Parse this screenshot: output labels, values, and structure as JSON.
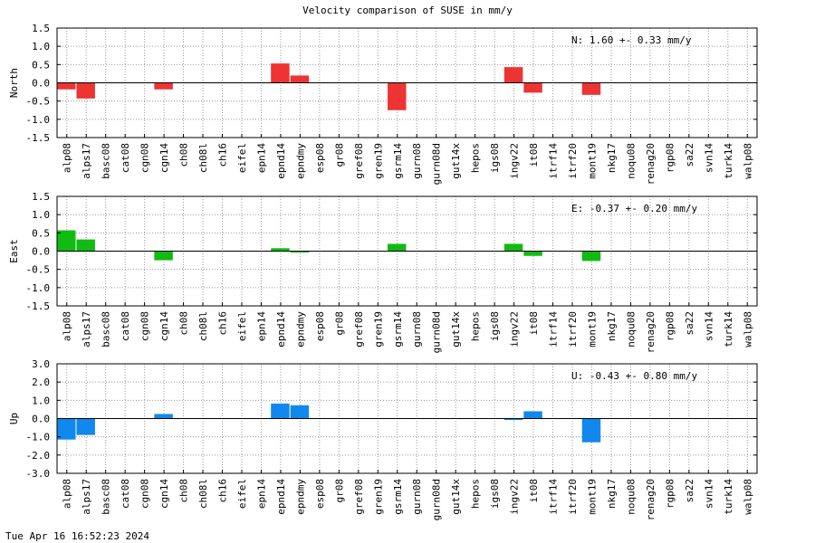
{
  "title": "Velocity comparison of SUSE in mm/y",
  "footer": "Tue Apr 16 16:52:23 2024",
  "chart_data": [
    {
      "type": "bar",
      "ylabel": "North",
      "ylim": [
        -1.5,
        1.5
      ],
      "yticks": [
        "1.5",
        "1.0",
        "0.5",
        "0.0",
        "-0.5",
        "-1.0",
        "-1.5"
      ],
      "ytick_values": [
        1.5,
        1.0,
        0.5,
        0.0,
        -0.5,
        -1.0,
        -1.5
      ],
      "grid": true,
      "color": "#ee3333",
      "annotation": "N:   1.60 +-  0.33 mm/y",
      "categories": [
        "alp08",
        "alps17",
        "basc08",
        "cat08",
        "cgn08",
        "cgn14",
        "ch08",
        "ch08l",
        "ch16",
        "eifel",
        "epn14",
        "epnd14",
        "epndmy",
        "esp08",
        "gr08",
        "gref08",
        "gren19",
        "gsrm14",
        "gurn08",
        "gurn08d",
        "gut14x",
        "hepos",
        "igs08",
        "ingv22",
        "it08",
        "itrf14",
        "itrf20",
        "mont19",
        "nkg17",
        "noqu08",
        "renag20",
        "rgp08",
        "sa22",
        "svn14",
        "turk14",
        "walp08"
      ],
      "values": [
        -0.18,
        -0.43,
        0,
        0,
        0,
        -0.18,
        0,
        0,
        0,
        0,
        0,
        0.53,
        0.2,
        0,
        0,
        0,
        0,
        -0.75,
        0,
        0,
        0,
        0,
        0,
        0.43,
        -0.27,
        0,
        0,
        -0.33,
        0,
        0,
        0,
        0,
        0,
        0,
        0,
        0
      ]
    },
    {
      "type": "bar",
      "ylabel": "East",
      "ylim": [
        -1.5,
        1.5
      ],
      "yticks": [
        "1.5",
        "1.0",
        "0.5",
        "0.0",
        "-0.5",
        "-1.0",
        "-1.5"
      ],
      "ytick_values": [
        1.5,
        1.0,
        0.5,
        0.0,
        -0.5,
        -1.0,
        -1.5
      ],
      "grid": true,
      "color": "#11bb11",
      "annotation": "E:  -0.37 +-  0.20 mm/y",
      "categories": [
        "alp08",
        "alps17",
        "basc08",
        "cat08",
        "cgn08",
        "cgn14",
        "ch08",
        "ch08l",
        "ch16",
        "eifel",
        "epn14",
        "epnd14",
        "epndmy",
        "esp08",
        "gr08",
        "gref08",
        "gren19",
        "gsrm14",
        "gurn08",
        "gurn08d",
        "gut14x",
        "hepos",
        "igs08",
        "ingv22",
        "it08",
        "itrf14",
        "itrf20",
        "mont19",
        "nkg17",
        "noqu08",
        "renag20",
        "rgp08",
        "sa22",
        "svn14",
        "turk14",
        "walp08"
      ],
      "values": [
        0.57,
        0.32,
        0,
        0,
        0,
        -0.25,
        0,
        0,
        0,
        0,
        0,
        0.08,
        -0.04,
        0,
        0,
        0,
        0,
        0.2,
        0,
        0,
        0,
        0,
        0,
        0.2,
        -0.13,
        0,
        0,
        -0.27,
        0,
        0,
        0,
        0,
        0,
        0,
        0,
        0
      ]
    },
    {
      "type": "bar",
      "ylabel": "Up",
      "ylim": [
        -3.0,
        3.0
      ],
      "yticks": [
        "3.0",
        "2.0",
        "1.0",
        "0.0",
        "-1.0",
        "-2.0",
        "-3.0"
      ],
      "ytick_values": [
        3.0,
        2.0,
        1.0,
        0.0,
        -1.0,
        -2.0,
        -3.0
      ],
      "grid": true,
      "color": "#1188ee",
      "annotation": "U:  -0.43 +-  0.80 mm/y",
      "categories": [
        "alp08",
        "alps17",
        "basc08",
        "cat08",
        "cgn08",
        "cgn14",
        "ch08",
        "ch08l",
        "ch16",
        "eifel",
        "epn14",
        "epnd14",
        "epndmy",
        "esp08",
        "gr08",
        "gref08",
        "gren19",
        "gsrm14",
        "gurn08",
        "gurn08d",
        "gut14x",
        "hepos",
        "igs08",
        "ingv22",
        "it08",
        "itrf14",
        "itrf20",
        "mont19",
        "nkg17",
        "noqu08",
        "renag20",
        "rgp08",
        "sa22",
        "svn14",
        "turk14",
        "walp08"
      ],
      "values": [
        -1.15,
        -0.9,
        0,
        0,
        0,
        0.25,
        0,
        0,
        0,
        0,
        0,
        0.82,
        0.73,
        0,
        0,
        0,
        0,
        0,
        0,
        0,
        0,
        0,
        0,
        -0.08,
        0.4,
        0,
        0,
        -1.3,
        0,
        0,
        0,
        0,
        0,
        0,
        0,
        0
      ]
    }
  ]
}
